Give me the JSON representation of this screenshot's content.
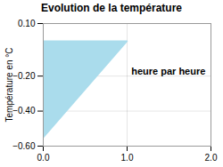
{
  "chart_data": {
    "type": "area",
    "title": "Evolution de la température",
    "ylabel": "Température en °C",
    "x": [
      0,
      0,
      1
    ],
    "values": [
      0,
      -0.55,
      0
    ],
    "color": "#aadcec",
    "xlim": [
      0,
      2
    ],
    "ylim": [
      -0.6,
      0.1
    ],
    "xticks": [
      0,
      1,
      2
    ],
    "yticks": [
      -0.6,
      -0.4,
      -0.2,
      0.1
    ],
    "grid": true,
    "annotations": [
      {
        "text": "heure par heure",
        "x": 1.05,
        "y": -0.15
      }
    ]
  }
}
